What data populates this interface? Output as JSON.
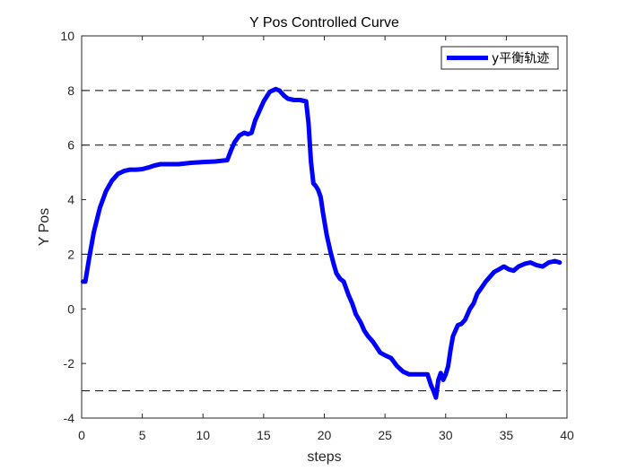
{
  "chart_data": {
    "type": "line",
    "title": "Y Pos Controlled Curve",
    "xlabel": "steps",
    "ylabel": "Y Pos",
    "xlim": [
      0,
      40
    ],
    "ylim": [
      -4,
      10
    ],
    "xticks": [
      0,
      5,
      10,
      15,
      20,
      25,
      30,
      35,
      40
    ],
    "yticks": [
      -4,
      -2,
      0,
      2,
      4,
      6,
      8,
      10
    ],
    "grid": false,
    "reference_lines": [
      8,
      6,
      2,
      -3
    ],
    "legend": {
      "position": "top-right"
    },
    "colors": {
      "series": "#0000ff",
      "reference": "#000000"
    },
    "series": [
      {
        "name": "y平衡轨迹",
        "x": [
          0.1,
          0.3,
          0.6,
          1.0,
          1.5,
          2.0,
          2.5,
          3.0,
          3.5,
          4.0,
          4.5,
          5.0,
          5.5,
          6.0,
          6.5,
          7.0,
          7.5,
          8.0,
          9.0,
          10.0,
          11.0,
          12.0,
          12.3,
          12.6,
          13.0,
          13.4,
          13.7,
          14.0,
          14.3,
          14.7,
          15.0,
          15.5,
          16.0,
          16.3,
          16.7,
          17.0,
          17.5,
          18.0,
          18.5,
          18.7,
          18.9,
          19.1,
          19.3,
          19.5,
          19.7,
          19.9,
          20.2,
          20.5,
          20.8,
          21.0,
          21.3,
          21.6,
          22.0,
          22.3,
          22.6,
          23.0,
          23.3,
          23.6,
          24.0,
          24.3,
          24.6,
          25.0,
          25.5,
          26.0,
          26.5,
          27.0,
          27.5,
          28.0,
          28.5,
          28.8,
          29.0,
          29.2,
          29.4,
          29.6,
          29.8,
          30.0,
          30.2,
          30.4,
          30.6,
          30.8,
          31.0,
          31.3,
          31.6,
          32.0,
          32.3,
          32.6,
          33.0,
          33.3,
          33.6,
          34.0,
          34.4,
          34.8,
          35.2,
          35.6,
          36.0,
          36.5,
          37.0,
          37.5,
          38.0,
          38.5,
          39.0,
          39.4
        ],
        "values": [
          1.0,
          1.0,
          1.8,
          2.8,
          3.7,
          4.3,
          4.7,
          4.95,
          5.05,
          5.1,
          5.1,
          5.12,
          5.18,
          5.25,
          5.3,
          5.3,
          5.3,
          5.3,
          5.35,
          5.38,
          5.4,
          5.45,
          5.8,
          6.1,
          6.35,
          6.45,
          6.4,
          6.45,
          6.9,
          7.3,
          7.6,
          7.95,
          8.05,
          8.0,
          7.8,
          7.7,
          7.65,
          7.65,
          7.6,
          6.8,
          5.4,
          4.6,
          4.5,
          4.35,
          4.1,
          3.5,
          2.7,
          2.1,
          1.6,
          1.3,
          1.1,
          1.0,
          0.5,
          0.2,
          -0.2,
          -0.5,
          -0.8,
          -1.0,
          -1.2,
          -1.4,
          -1.6,
          -1.7,
          -1.8,
          -2.1,
          -2.3,
          -2.4,
          -2.4,
          -2.4,
          -2.4,
          -2.8,
          -3.0,
          -3.25,
          -2.6,
          -2.35,
          -2.6,
          -2.4,
          -2.1,
          -1.5,
          -1.0,
          -0.8,
          -0.6,
          -0.55,
          -0.4,
          0.0,
          0.2,
          0.55,
          0.8,
          1.0,
          1.15,
          1.35,
          1.45,
          1.55,
          1.45,
          1.4,
          1.55,
          1.65,
          1.7,
          1.6,
          1.55,
          1.7,
          1.75,
          1.7
        ]
      }
    ]
  }
}
